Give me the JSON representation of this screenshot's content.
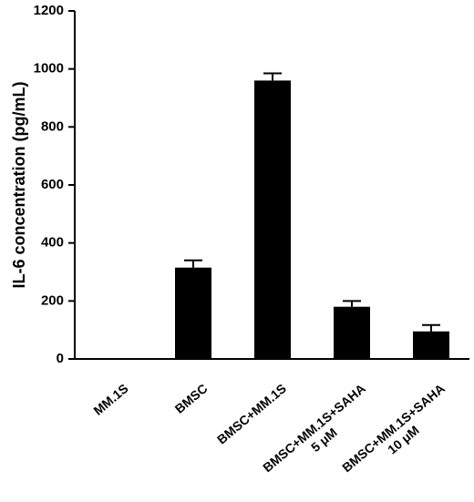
{
  "chart_data": {
    "type": "bar",
    "y_label": "IL-6 concentration (pg/mL)",
    "categories": [
      "MM.1S",
      "BMSC",
      "BMSC+MM.1S",
      "BMSC+MM.1S+SAHA\n5 μM",
      "BMSC+MM.1S+SAHA\n10 μM"
    ],
    "values": [
      0,
      315,
      960,
      180,
      95
    ],
    "errors": [
      null,
      25,
      25,
      20,
      22
    ],
    "color": "#000000",
    "ylim": [
      0,
      1200
    ],
    "yticks": [
      0,
      200,
      400,
      600,
      800,
      1000,
      1200
    ],
    "grid": false
  }
}
